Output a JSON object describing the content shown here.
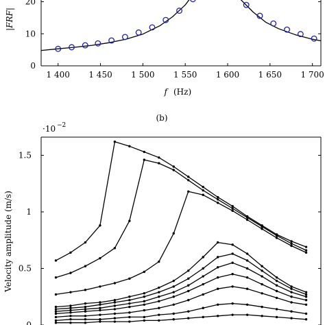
{
  "chart_data": [
    {
      "type": "line",
      "ylabel": "|FRF|",
      "xlabel_var": "f",
      "xlabel_unit": "(Hz)",
      "xlim": [
        1380,
        1710
      ],
      "ylim": [
        0,
        25
      ],
      "xticks": [
        1400,
        1450,
        1500,
        1550,
        1600,
        1650,
        1700
      ],
      "xtick_labels": [
        "1 400",
        "1 450",
        "1 500",
        "1 550",
        "1 600",
        "1 650",
        "1 700"
      ],
      "yticks": [
        0,
        10,
        20
      ],
      "ytick_labels": [
        "0",
        "10",
        "20"
      ],
      "grid": false,
      "series": [
        {
          "kind": "curve",
          "color": "#000000",
          "x": [
            1380,
            1400,
            1420,
            1440,
            1460,
            1480,
            1500,
            1520,
            1535,
            1550,
            1560,
            1570,
            1600,
            1615,
            1630,
            1645,
            1660,
            1680,
            1700,
            1710
          ],
          "y": [
            4.8,
            5.3,
            5.8,
            6.4,
            7.2,
            8.3,
            9.9,
            12.5,
            15.3,
            19.0,
            22.5,
            27,
            27,
            20.8,
            16.8,
            13.6,
            11.6,
            9.7,
            8.3,
            7.8
          ]
        },
        {
          "kind": "markers",
          "color": "#1f1fa8",
          "x": [
            1400,
            1416,
            1432,
            1447,
            1463,
            1479,
            1495,
            1511,
            1527,
            1543,
            1559,
            1622,
            1638,
            1654,
            1670,
            1686,
            1702
          ],
          "y": [
            5.3,
            5.8,
            6.4,
            7.0,
            7.9,
            9.0,
            10.4,
            12.0,
            14.3,
            17.2,
            20.8,
            19.0,
            15.6,
            13.2,
            11.3,
            9.9,
            8.5
          ]
        }
      ]
    },
    {
      "type": "line",
      "caption": "(b)",
      "ylabel": "Velocity amplitude  (m/s)",
      "y_exponent": "·10",
      "y_exponent_power": "−2",
      "ylim": [
        0,
        1.65
      ],
      "yticks": [
        0,
        0.5,
        1,
        1.5
      ],
      "ytick_labels": [
        "0",
        "0.5",
        "1",
        "1.5"
      ],
      "xlim": [
        0,
        19
      ],
      "grid": false,
      "series_color": "#000000",
      "series": [
        {
          "x": [
            1,
            2,
            3,
            4,
            5,
            6,
            7,
            8,
            9,
            10,
            11,
            12,
            13,
            14,
            15,
            16,
            17,
            18
          ],
          "y": [
            0.57,
            0.64,
            0.73,
            0.88,
            1.62,
            1.58,
            1.53,
            1.48,
            1.4,
            1.31,
            1.22,
            1.13,
            1.05,
            0.96,
            0.88,
            0.8,
            0.74,
            0.69
          ]
        },
        {
          "x": [
            1,
            2,
            3,
            4,
            5,
            6,
            7,
            8,
            9,
            10,
            11,
            12,
            13,
            14,
            15,
            16,
            17,
            18
          ],
          "y": [
            0.42,
            0.46,
            0.52,
            0.59,
            0.68,
            0.92,
            1.46,
            1.43,
            1.37,
            1.28,
            1.19,
            1.11,
            1.03,
            0.95,
            0.87,
            0.79,
            0.72,
            0.66
          ]
        },
        {
          "x": [
            1,
            2,
            3,
            4,
            5,
            6,
            7,
            8,
            9,
            10,
            11,
            12,
            13,
            14,
            15,
            16,
            17,
            18
          ],
          "y": [
            0.27,
            0.29,
            0.31,
            0.34,
            0.37,
            0.41,
            0.47,
            0.56,
            0.81,
            1.18,
            1.15,
            1.08,
            1.01,
            0.93,
            0.85,
            0.77,
            0.7,
            0.64
          ]
        },
        {
          "x": [
            1,
            2,
            3,
            4,
            5,
            6,
            7,
            8,
            9,
            10,
            11,
            12,
            13,
            14,
            15,
            16,
            17,
            18
          ],
          "y": [
            0.16,
            0.17,
            0.19,
            0.2,
            0.22,
            0.25,
            0.28,
            0.33,
            0.39,
            0.48,
            0.6,
            0.73,
            0.71,
            0.63,
            0.52,
            0.42,
            0.34,
            0.29
          ]
        },
        {
          "x": [
            1,
            2,
            3,
            4,
            5,
            6,
            7,
            8,
            9,
            10,
            11,
            12,
            13,
            14,
            15,
            16,
            17,
            18
          ],
          "y": [
            0.14,
            0.15,
            0.16,
            0.18,
            0.2,
            0.22,
            0.25,
            0.29,
            0.34,
            0.41,
            0.5,
            0.6,
            0.63,
            0.57,
            0.48,
            0.39,
            0.32,
            0.27
          ]
        },
        {
          "x": [
            1,
            2,
            3,
            4,
            5,
            6,
            7,
            8,
            9,
            10,
            11,
            12,
            13,
            14,
            15,
            16,
            17,
            18
          ],
          "y": [
            0.12,
            0.13,
            0.14,
            0.15,
            0.17,
            0.19,
            0.21,
            0.25,
            0.29,
            0.35,
            0.43,
            0.51,
            0.55,
            0.5,
            0.43,
            0.35,
            0.29,
            0.25
          ]
        },
        {
          "x": [
            1,
            2,
            3,
            4,
            5,
            6,
            7,
            8,
            9,
            10,
            11,
            12,
            13,
            14,
            15,
            16,
            17,
            18
          ],
          "y": [
            0.1,
            0.11,
            0.12,
            0.13,
            0.14,
            0.16,
            0.18,
            0.21,
            0.25,
            0.3,
            0.36,
            0.42,
            0.45,
            0.42,
            0.36,
            0.3,
            0.25,
            0.22
          ]
        },
        {
          "x": [
            1,
            2,
            3,
            4,
            5,
            6,
            7,
            8,
            9,
            10,
            11,
            12,
            13,
            14,
            15,
            16,
            17,
            18
          ],
          "y": [
            0.07,
            0.08,
            0.08,
            0.09,
            0.1,
            0.11,
            0.13,
            0.15,
            0.18,
            0.22,
            0.27,
            0.32,
            0.34,
            0.32,
            0.28,
            0.24,
            0.2,
            0.18
          ]
        },
        {
          "x": [
            1,
            2,
            3,
            4,
            5,
            6,
            7,
            8,
            9,
            10,
            11,
            12,
            13,
            14,
            15,
            16,
            17,
            18
          ],
          "y": [
            0.04,
            0.05,
            0.05,
            0.05,
            0.06,
            0.07,
            0.07,
            0.09,
            0.1,
            0.12,
            0.15,
            0.18,
            0.19,
            0.18,
            0.16,
            0.14,
            0.12,
            0.1
          ]
        },
        {
          "x": [
            1,
            2,
            3,
            4,
            5,
            6,
            7,
            8,
            9,
            10,
            11,
            12,
            13,
            14,
            15,
            16,
            17,
            18
          ],
          "y": [
            0.02,
            0.02,
            0.02,
            0.03,
            0.03,
            0.03,
            0.04,
            0.04,
            0.05,
            0.06,
            0.07,
            0.08,
            0.09,
            0.09,
            0.08,
            0.07,
            0.06,
            0.05
          ]
        }
      ]
    }
  ]
}
